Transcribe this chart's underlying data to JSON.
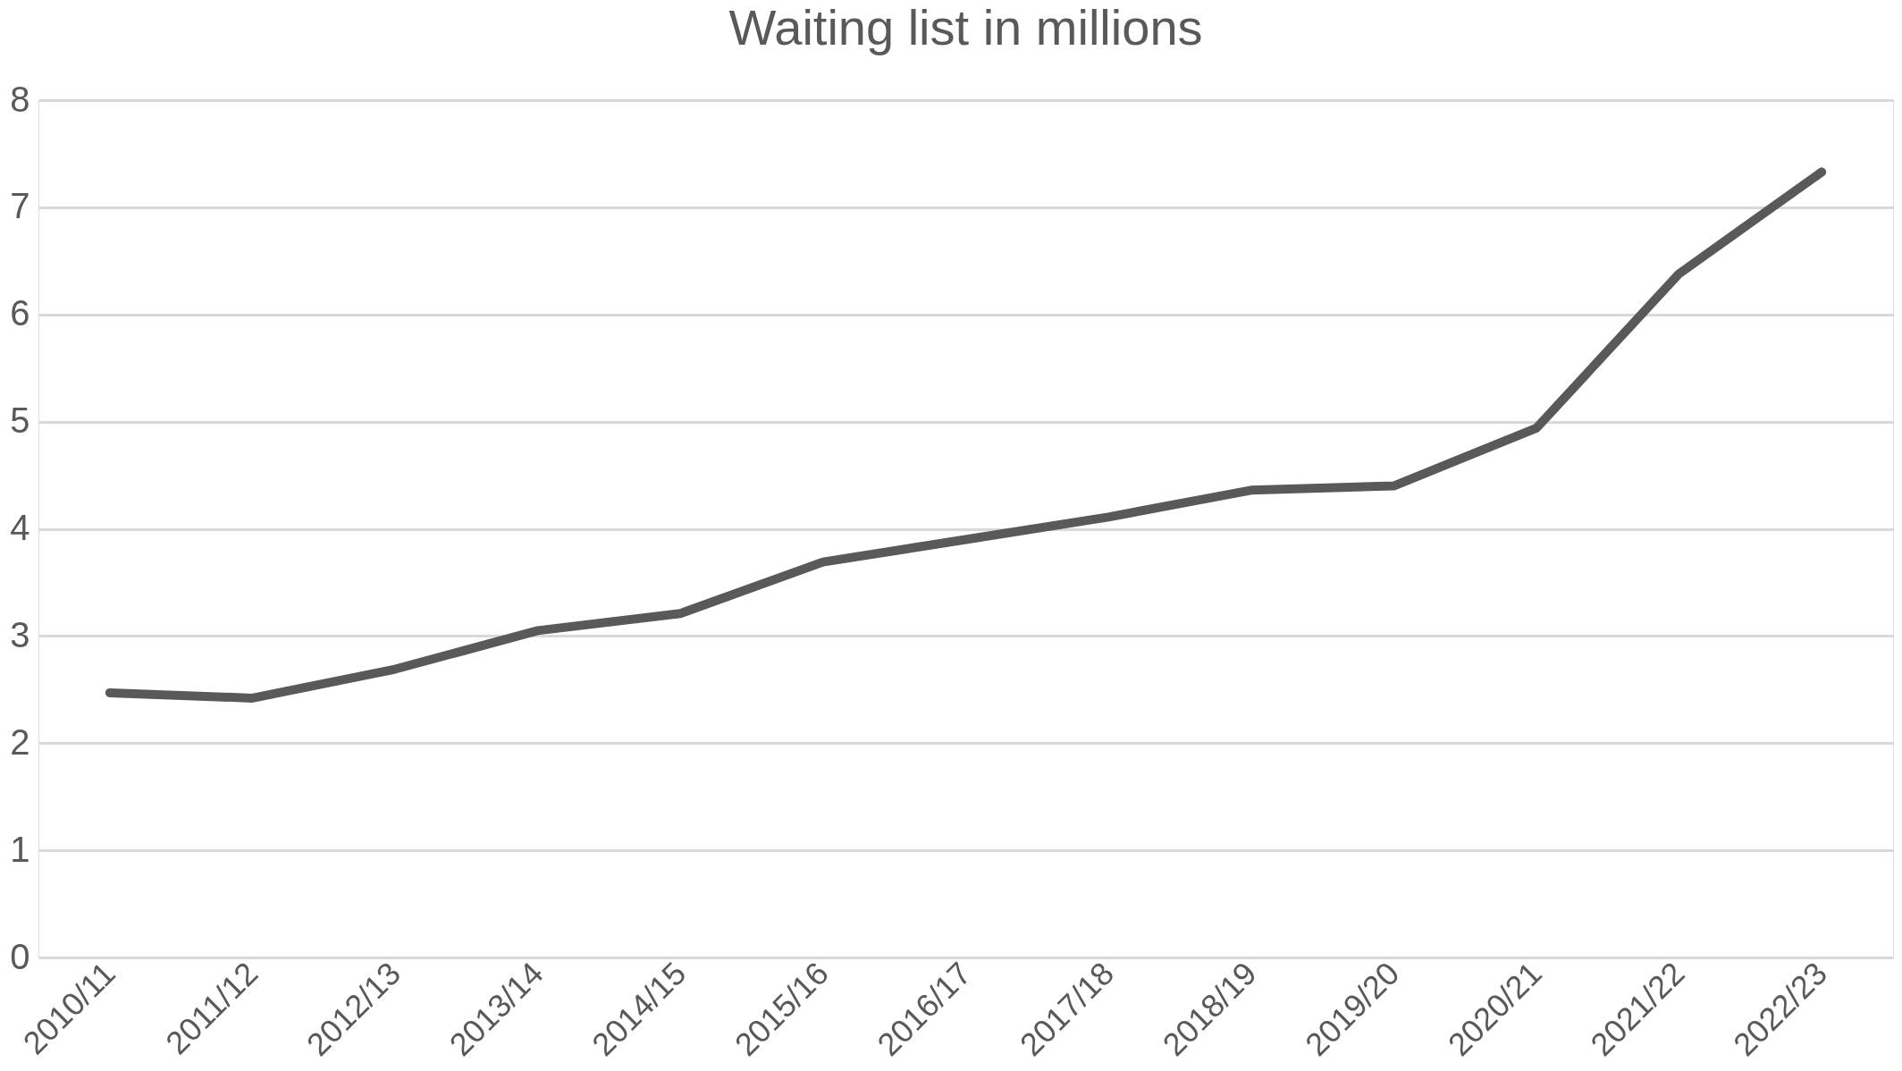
{
  "chart_data": {
    "type": "line",
    "title": "Waiting list in millions",
    "categories": [
      "2010/11",
      "2011/12",
      "2012/13",
      "2013/14",
      "2014/15",
      "2015/16",
      "2016/17",
      "2017/18",
      "2018/19",
      "2019/20",
      "2020/21",
      "2021/22",
      "2022/23"
    ],
    "series": [
      {
        "color": "#595959",
        "values": [
          2.47,
          2.42,
          2.69,
          3.05,
          3.21,
          3.69,
          3.9,
          4.11,
          4.36,
          4.4,
          4.94,
          6.38,
          7.33
        ]
      }
    ],
    "ylim": [
      0,
      8
    ],
    "yticks": [
      0,
      1,
      2,
      3,
      4,
      5,
      6,
      7,
      8
    ],
    "grid": "y",
    "marker": "none",
    "line_style": "solid"
  }
}
